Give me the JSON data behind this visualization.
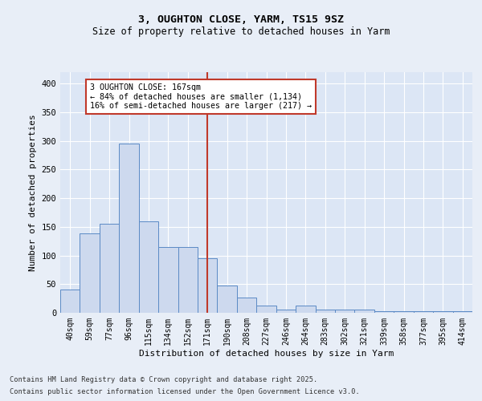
{
  "title1": "3, OUGHTON CLOSE, YARM, TS15 9SZ",
  "title2": "Size of property relative to detached houses in Yarm",
  "xlabel": "Distribution of detached houses by size in Yarm",
  "ylabel": "Number of detached properties",
  "categories": [
    "40sqm",
    "59sqm",
    "77sqm",
    "96sqm",
    "115sqm",
    "134sqm",
    "152sqm",
    "171sqm",
    "190sqm",
    "208sqm",
    "227sqm",
    "246sqm",
    "264sqm",
    "283sqm",
    "302sqm",
    "321sqm",
    "339sqm",
    "358sqm",
    "377sqm",
    "395sqm",
    "414sqm"
  ],
  "values": [
    40,
    138,
    155,
    295,
    160,
    115,
    115,
    95,
    47,
    26,
    12,
    5,
    12,
    5,
    5,
    5,
    3,
    3,
    3,
    3,
    3
  ],
  "bar_color": "#cdd9ee",
  "bar_edge_color": "#5b8ac5",
  "vline_label": "3 OUGHTON CLOSE: 167sqm",
  "annotation_line1": "← 84% of detached houses are smaller (1,134)",
  "annotation_line2": "16% of semi-detached houses are larger (217) →",
  "vline_color": "#c0392b",
  "annotation_box_edge": "#c0392b",
  "footer1": "Contains HM Land Registry data © Crown copyright and database right 2025.",
  "footer2": "Contains public sector information licensed under the Open Government Licence v3.0.",
  "ylim": [
    0,
    420
  ],
  "yticks": [
    0,
    50,
    100,
    150,
    200,
    250,
    300,
    350,
    400
  ],
  "fig_bg": "#e8eef7",
  "plot_bg": "#dce6f5"
}
